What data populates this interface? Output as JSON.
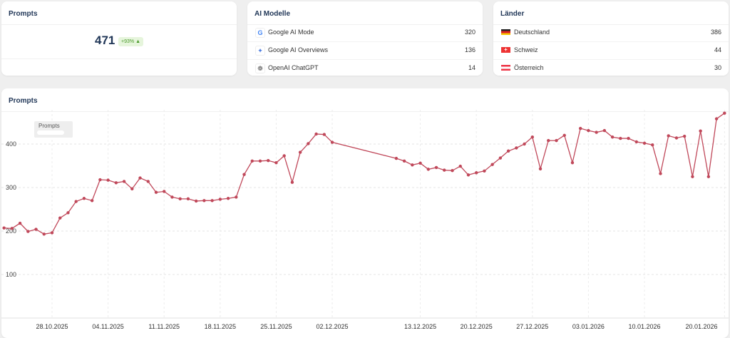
{
  "prompts_card": {
    "title": "Prompts",
    "value": "471",
    "change": "+93%",
    "change_icon": "triangle-up-icon",
    "change_color": "#4a9a2a"
  },
  "models_card": {
    "title": "AI Modelle",
    "items": [
      {
        "label": "Google AI Mode",
        "value": "320",
        "icon": "google-icon"
      },
      {
        "label": "Google AI Overviews",
        "value": "136",
        "icon": "sparkle-icon"
      },
      {
        "label": "OpenAI ChatGPT",
        "value": "14",
        "icon": "openai-icon"
      }
    ]
  },
  "countries_card": {
    "title": "Länder",
    "items": [
      {
        "label": "Deutschland",
        "value": "386",
        "icon": "flag-germany-icon"
      },
      {
        "label": "Schweiz",
        "value": "44",
        "icon": "flag-switzerland-icon"
      },
      {
        "label": "Österreich",
        "value": "30",
        "icon": "flag-austria-icon"
      }
    ]
  },
  "chart_card": {
    "title": "Prompts"
  },
  "chart_data": {
    "type": "line",
    "title": "",
    "xlabel": "",
    "ylabel": "",
    "ylim": [
      0,
      470
    ],
    "yticks": [
      100,
      200,
      300,
      400
    ],
    "grid": true,
    "legend": {
      "position": "top-left",
      "entries": [
        "Prompts"
      ]
    },
    "xtick_labels": [
      "28.10.2025",
      "04.11.2025",
      "11.11.2025",
      "18.11.2025",
      "25.11.2025",
      "02.12.2025",
      "13.12.2025",
      "20.12.2025",
      "27.12.2025",
      "03.01.2026",
      "10.01.2026",
      "20.01.2026"
    ],
    "series": [
      {
        "name": "Prompts",
        "color": "#c0485a",
        "points": [
          [
            "2025-10-22",
            207
          ],
          [
            "2025-10-23",
            206
          ],
          [
            "2025-10-24",
            218
          ],
          [
            "2025-10-25",
            199
          ],
          [
            "2025-10-26",
            204
          ],
          [
            "2025-10-27",
            193
          ],
          [
            "2025-10-28",
            196
          ],
          [
            "2025-10-29",
            230
          ],
          [
            "2025-10-30",
            242
          ],
          [
            "2025-10-31",
            268
          ],
          [
            "2025-11-01",
            275
          ],
          [
            "2025-11-02",
            270
          ],
          [
            "2025-11-03",
            318
          ],
          [
            "2025-11-04",
            317
          ],
          [
            "2025-11-05",
            311
          ],
          [
            "2025-11-06",
            314
          ],
          [
            "2025-11-07",
            297
          ],
          [
            "2025-11-08",
            322
          ],
          [
            "2025-11-09",
            314
          ],
          [
            "2025-11-10",
            289
          ],
          [
            "2025-11-11",
            291
          ],
          [
            "2025-11-12",
            278
          ],
          [
            "2025-11-13",
            274
          ],
          [
            "2025-11-14",
            274
          ],
          [
            "2025-11-15",
            269
          ],
          [
            "2025-11-16",
            270
          ],
          [
            "2025-11-17",
            270
          ],
          [
            "2025-11-18",
            273
          ],
          [
            "2025-11-19",
            275
          ],
          [
            "2025-11-20",
            278
          ],
          [
            "2025-11-21",
            330
          ],
          [
            "2025-11-22",
            361
          ],
          [
            "2025-11-23",
            361
          ],
          [
            "2025-11-24",
            362
          ],
          [
            "2025-11-25",
            357
          ],
          [
            "2025-11-26",
            373
          ],
          [
            "2025-11-27",
            312
          ],
          [
            "2025-11-28",
            381
          ],
          [
            "2025-11-29",
            401
          ],
          [
            "2025-11-30",
            423
          ],
          [
            "2025-12-01",
            422
          ],
          [
            "2025-12-02",
            404
          ],
          [
            "2025-12-10",
            367
          ],
          [
            "2025-12-11",
            361
          ],
          [
            "2025-12-12",
            352
          ],
          [
            "2025-12-13",
            356
          ],
          [
            "2025-12-14",
            342
          ],
          [
            "2025-12-15",
            346
          ],
          [
            "2025-12-16",
            340
          ],
          [
            "2025-12-17",
            339
          ],
          [
            "2025-12-18",
            349
          ],
          [
            "2025-12-19",
            329
          ],
          [
            "2025-12-20",
            334
          ],
          [
            "2025-12-21",
            338
          ],
          [
            "2025-12-22",
            353
          ],
          [
            "2025-12-23",
            368
          ],
          [
            "2025-12-24",
            384
          ],
          [
            "2025-12-25",
            391
          ],
          [
            "2025-12-26",
            400
          ],
          [
            "2025-12-27",
            416
          ],
          [
            "2025-12-28",
            343
          ],
          [
            "2025-12-29",
            408
          ],
          [
            "2025-12-30",
            408
          ],
          [
            "2025-12-31",
            420
          ],
          [
            "2026-01-01",
            357
          ],
          [
            "2026-01-02",
            436
          ],
          [
            "2026-01-03",
            431
          ],
          [
            "2026-01-04",
            427
          ],
          [
            "2026-01-05",
            431
          ],
          [
            "2026-01-06",
            416
          ],
          [
            "2026-01-07",
            413
          ],
          [
            "2026-01-08",
            413
          ],
          [
            "2026-01-09",
            405
          ],
          [
            "2026-01-10",
            402
          ],
          [
            "2026-01-11",
            398
          ],
          [
            "2026-01-12",
            332
          ],
          [
            "2026-01-13",
            419
          ],
          [
            "2026-01-14",
            414
          ],
          [
            "2026-01-15",
            418
          ],
          [
            "2026-01-16",
            325
          ],
          [
            "2026-01-17",
            430
          ],
          [
            "2026-01-18",
            325
          ],
          [
            "2026-01-19",
            458
          ],
          [
            "2026-01-20",
            471
          ]
        ]
      }
    ]
  }
}
